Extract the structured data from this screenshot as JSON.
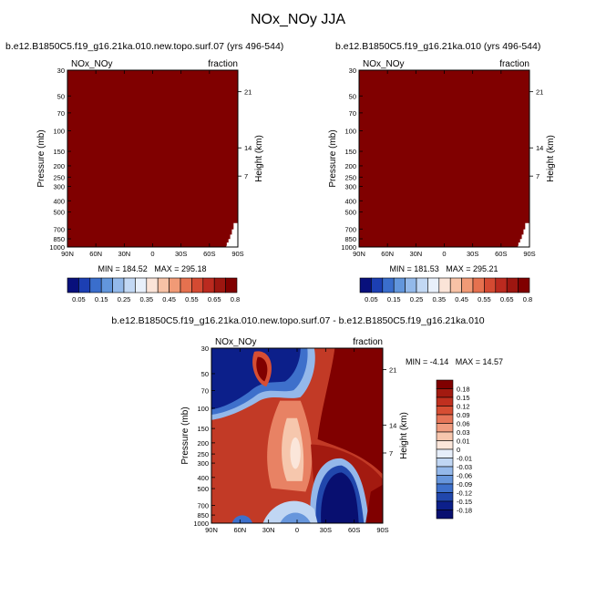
{
  "main_title": "NOx_NOy JJA",
  "panels": [
    {
      "case_title": "b.e12.B1850C5.f19_g16.21ka.010.new.topo.surf.07 (yrs 496-544)",
      "var_label": "NOx_NOy",
      "units_label": "fraction",
      "stats": "MIN = 184.52   MAX = 295.18"
    },
    {
      "case_title": "b.e12.B1850C5.f19_g16.21ka.010 (yrs 496-544)",
      "var_label": "NOx_NOy",
      "units_label": "fraction",
      "stats": "MIN = 181.53   MAX = 295.21"
    },
    {
      "case_title": "b.e12.B1850C5.f19_g16.21ka.010.new.topo.surf.07 - b.e12.B1850C5.f19_g16.21ka.010",
      "var_label": "NOx_NOy",
      "units_label": "fraction",
      "stats": "MIN = -4.14   MAX = 14.57"
    }
  ],
  "chart_data": [
    {
      "type": "heatmap",
      "title": "b.e12.B1850C5.f19_g16.21ka.010.new.topo.surf.07 (yrs 496-544)",
      "subtitle": "NOx_NOy",
      "units": "fraction",
      "xlabel": "",
      "ylabel": "Pressure (mb)",
      "ylabel_right": "Height (km)",
      "xticks": [
        "90N",
        "60N",
        "30N",
        "0",
        "30S",
        "60S",
        "90S"
      ],
      "yticks": [
        "30",
        "50",
        "70",
        "100",
        "150",
        "200",
        "250",
        "300",
        "400",
        "500",
        "700",
        "850",
        "1000"
      ],
      "yticks_right": [
        "21",
        "14",
        "7"
      ],
      "ylim": [
        1000,
        30
      ],
      "field": "saturated: all values above 0.8 (dark red); masked below surface near 90S",
      "min": 184.52,
      "max": 295.18
    },
    {
      "type": "heatmap",
      "title": "b.e12.B1850C5.f19_g16.21ka.010 (yrs 496-544)",
      "subtitle": "NOx_NOy",
      "units": "fraction",
      "xlabel": "",
      "ylabel": "Pressure (mb)",
      "ylabel_right": "Height (km)",
      "xticks": [
        "90N",
        "60N",
        "30N",
        "0",
        "30S",
        "60S",
        "90S"
      ],
      "yticks": [
        "30",
        "50",
        "70",
        "100",
        "150",
        "200",
        "250",
        "300",
        "400",
        "500",
        "700",
        "850",
        "1000"
      ],
      "yticks_right": [
        "21",
        "14",
        "7"
      ],
      "ylim": [
        1000,
        30
      ],
      "field": "saturated: all values above 0.8 (dark red); masked below surface near 90S",
      "min": 181.53,
      "max": 295.21
    },
    {
      "type": "heatmap",
      "title": "b.e12.B1850C5.f19_g16.21ka.010.new.topo.surf.07 - b.e12.B1850C5.f19_g16.21ka.010",
      "subtitle": "NOx_NOy",
      "units": "fraction",
      "xlabel": "",
      "ylabel": "Pressure (mb)",
      "ylabel_right": "Height (km)",
      "xticks": [
        "90N",
        "60N",
        "30N",
        "0",
        "30S",
        "60S",
        "90S"
      ],
      "yticks": [
        "30",
        "50",
        "70",
        "100",
        "150",
        "200",
        "250",
        "300",
        "400",
        "500",
        "700",
        "850",
        "1000"
      ],
      "yticks_right": [
        "21",
        "14",
        "7"
      ],
      "ylim": [
        1000,
        30
      ],
      "field": "difference: positive (red) over most of domain, negative (blue) bands in NH upper levels and SH lower troposphere",
      "min": -4.14,
      "max": 14.57
    }
  ],
  "colorbar_top": {
    "labels": [
      "0.05",
      "0.15",
      "0.25",
      "0.35",
      "0.45",
      "0.55",
      "0.65",
      "0.8"
    ],
    "colors": [
      "#08107c",
      "#1c3fb3",
      "#3a6ecc",
      "#6296dc",
      "#93b9ea",
      "#c2d8f4",
      "#e8f0fb",
      "#fbe4d8",
      "#f7c2a6",
      "#f19a76",
      "#e5714f",
      "#d44a32",
      "#bb2a1f",
      "#9d1610",
      "#800000"
    ]
  },
  "colorbar_diff": {
    "labels": [
      "0.18",
      "0.15",
      "0.12",
      "0.09",
      "0.06",
      "0.03",
      "0.01",
      "0",
      "-0.01",
      "-0.03",
      "-0.06",
      "-0.09",
      "-0.12",
      "-0.15",
      "-0.18"
    ],
    "colors": [
      "#800000",
      "#a31a10",
      "#c0301f",
      "#d64e33",
      "#e67558",
      "#f09c7f",
      "#f7c6ad",
      "#fbe6da",
      "#e6eefa",
      "#c0d6f3",
      "#94b8ea",
      "#6796dc",
      "#3e70cb",
      "#2147ac",
      "#0c1f8a",
      "#080f70"
    ]
  }
}
